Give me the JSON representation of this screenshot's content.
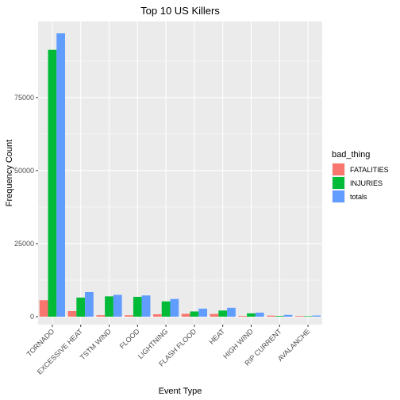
{
  "chart_data": {
    "type": "bar",
    "title": "Top 10 US Killers",
    "xlabel": "Event Type",
    "ylabel": "Frequency Count",
    "categories": [
      "TORNADO",
      "EXCESSIVE HEAT",
      "TSTM WIND",
      "FLOOD",
      "LIGHTNING",
      "FLASH FLOOD",
      "HEAT",
      "HIGH WIND",
      "RIP CURRENT",
      "AVALANCHE"
    ],
    "series": [
      {
        "name": "FATALITIES",
        "color": "#F8766D",
        "values": [
          5633,
          1903,
          504,
          470,
          816,
          978,
          937,
          248,
          368,
          224
        ]
      },
      {
        "name": "INJURIES",
        "color": "#00BA38",
        "values": [
          91346,
          6525,
          6957,
          6789,
          5230,
          1777,
          2100,
          1137,
          232,
          170
        ]
      },
      {
        "name": "totals",
        "color": "#619CFF",
        "values": [
          96979,
          8428,
          7461,
          7259,
          6046,
          2755,
          3037,
          1385,
          600,
          394
        ]
      }
    ],
    "ylim": [
      0,
      96979
    ],
    "yticks": [
      0,
      25000,
      50000,
      75000
    ],
    "legend": {
      "title": "bad_thing",
      "position": "right"
    },
    "grid": true
  }
}
